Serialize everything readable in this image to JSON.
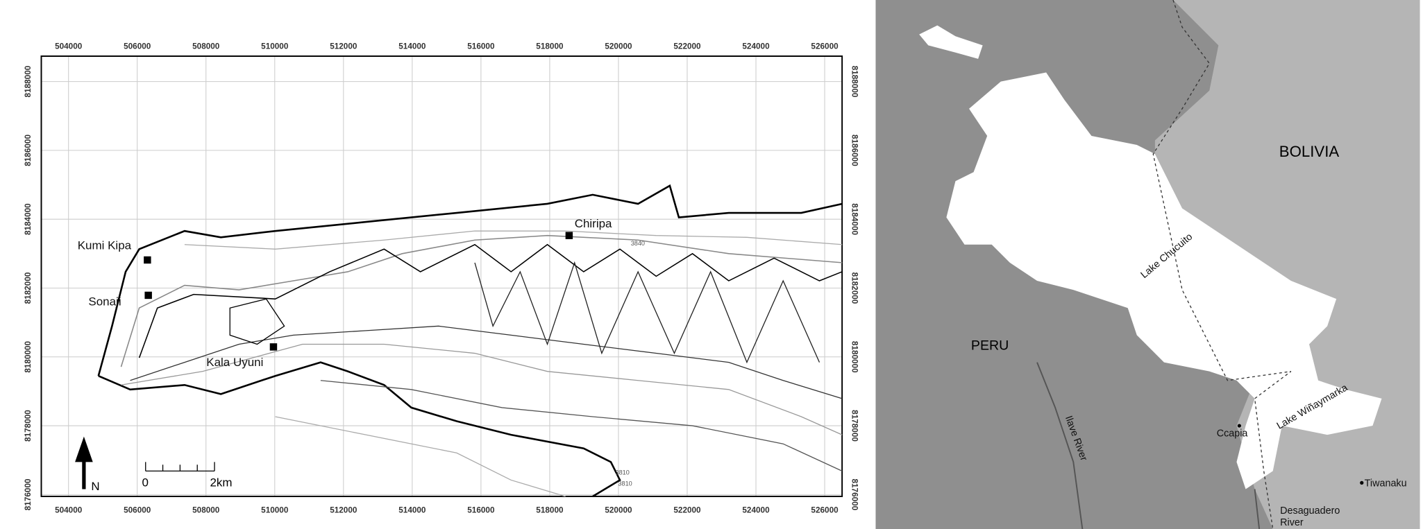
{
  "left_map": {
    "x_ticks": [
      "504000",
      "506000",
      "508000",
      "510000",
      "512000",
      "514000",
      "516000",
      "518000",
      "520000",
      "522000",
      "524000",
      "526000"
    ],
    "y_ticks": [
      "8188000",
      "8186000",
      "8184000",
      "8182000",
      "8180000",
      "8178000",
      "8176000"
    ],
    "sites": [
      "Kumi Kipa",
      "Sonaji",
      "Kala Uyuni",
      "Chiripa"
    ],
    "north": "N",
    "scale": [
      "0",
      "2km"
    ],
    "contour_labels": [
      "3840",
      "3810",
      "3810"
    ]
  },
  "right_map": {
    "country_labels": [
      "BOLIVIA",
      "PERU"
    ],
    "lakes": [
      "Lake Chucuito",
      "Lake Wiñaymarka"
    ],
    "places": [
      "Ccapia",
      "Tiwanaku"
    ],
    "rivers": [
      "Ilave River",
      "Desaguadero",
      "River"
    ]
  }
}
